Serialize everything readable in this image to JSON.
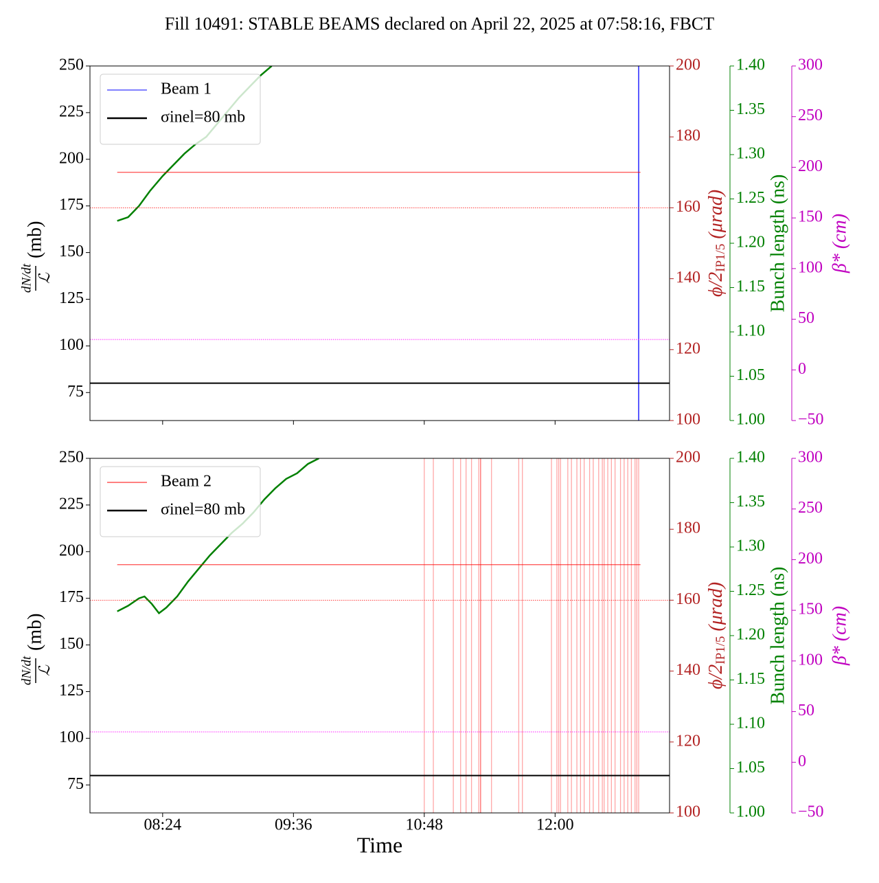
{
  "title": "Fill 10491: STABLE BEAMS declared on April 22, 2025 at 07:58:16, FBCT",
  "chart_data": [
    {
      "type": "line",
      "xtick_labels": false,
      "legend": "upper left",
      "ylabel": {
        "numerator": "dN/dt",
        "denominator": "ℒ",
        "unit": "(mb)"
      },
      "ylim": [
        60,
        250
      ],
      "yticks": [
        75,
        100,
        125,
        150,
        175,
        200,
        225,
        250
      ],
      "y2label": {
        "main": "ϕ/2",
        "sub": "IP1/5",
        "unit": " (μrad)"
      },
      "y2color": "#b22222",
      "y2lim": [
        100,
        200
      ],
      "y2ticks": [
        100,
        120,
        140,
        160,
        180,
        200
      ],
      "y3label": "Bunch length (ns)",
      "y3color": "#008000",
      "y3lim": [
        1,
        1.4
      ],
      "y3ticks": [
        {
          "value": 1,
          "label": "1.00"
        },
        {
          "value": 1.05,
          "label": "1.05"
        },
        {
          "value": 1.1,
          "label": "1.10"
        },
        {
          "value": 1.15,
          "label": "1.15"
        },
        {
          "value": 1.2,
          "label": "1.20"
        },
        {
          "value": 1.25,
          "label": "1.25"
        },
        {
          "value": 1.3,
          "label": "1.30"
        },
        {
          "value": 1.35,
          "label": "1.35"
        },
        {
          "value": 1.4,
          "label": "1.40"
        }
      ],
      "y4label": "β* (cm)",
      "y4color": "#c000c0",
      "y4lim": [
        -50,
        300
      ],
      "y4ticks": [
        {
          "value": -50,
          "label": "−50"
        },
        0,
        50,
        100,
        150,
        200,
        250,
        300
      ],
      "xlim": [
        "07:44",
        "13:03"
      ],
      "xticks": [
        "08:24",
        "09:36",
        "10:48",
        "12:00"
      ],
      "series": [
        {
          "color": "#008000",
          "x": [
            "07:59",
            "08:05",
            "08:11",
            "08:17",
            "08:24",
            "08:30",
            "08:36",
            "08:42",
            "08:48",
            "08:54",
            "09:00",
            "09:06",
            "09:12",
            "09:18",
            "09:24"
          ],
          "values": [
            167,
            169,
            175,
            183,
            191,
            197,
            203,
            208,
            212,
            219,
            226,
            233,
            239,
            245,
            250
          ]
        },
        {
          "name": "Beam 1",
          "kind": "vline",
          "color": "#0000ff",
          "alpha": 1,
          "x": [
            "12:46"
          ]
        },
        {
          "name": "σinel=80 mb",
          "kind": "hline",
          "color": "#000000",
          "values": [
            80
          ]
        },
        {
          "color": "#ff0000",
          "axis": "y2",
          "x": [
            "07:59",
            "12:47"
          ],
          "values": [
            170,
            170
          ]
        },
        {
          "kind": "hline",
          "dash": "dotted",
          "color": "#ff0000",
          "axis": "y2",
          "values": [
            160
          ]
        },
        {
          "kind": "hline",
          "dash": "dotted",
          "color": "#ff00ff",
          "axis": "y4",
          "values": [
            30
          ]
        }
      ]
    },
    {
      "type": "line",
      "xlabel": "Time",
      "legend": "upper left",
      "ylabel": {
        "numerator": "dN/dt",
        "denominator": "ℒ",
        "unit": "(mb)"
      },
      "ylim": [
        60,
        250
      ],
      "yticks": [
        75,
        100,
        125,
        150,
        175,
        200,
        225,
        250
      ],
      "y2label": {
        "main": "ϕ/2",
        "sub": "IP1/5",
        "unit": " (μrad)"
      },
      "y2color": "#b22222",
      "y2lim": [
        100,
        200
      ],
      "y2ticks": [
        100,
        120,
        140,
        160,
        180,
        200
      ],
      "y3label": "Bunch length (ns)",
      "y3color": "#008000",
      "y3lim": [
        1,
        1.4
      ],
      "y3ticks": [
        {
          "value": 1,
          "label": "1.00"
        },
        {
          "value": 1.05,
          "label": "1.05"
        },
        {
          "value": 1.1,
          "label": "1.10"
        },
        {
          "value": 1.15,
          "label": "1.15"
        },
        {
          "value": 1.2,
          "label": "1.20"
        },
        {
          "value": 1.25,
          "label": "1.25"
        },
        {
          "value": 1.3,
          "label": "1.30"
        },
        {
          "value": 1.35,
          "label": "1.35"
        },
        {
          "value": 1.4,
          "label": "1.40"
        }
      ],
      "y4label": "β* (cm)",
      "y4color": "#c000c0",
      "y4lim": [
        -50,
        300
      ],
      "y4ticks": [
        {
          "value": -50,
          "label": "−50"
        },
        0,
        50,
        100,
        150,
        200,
        250,
        300
      ],
      "xlim": [
        "07:44",
        "13:03"
      ],
      "xticks": [
        "08:24",
        "09:36",
        "10:48",
        "12:00"
      ],
      "series": [
        {
          "color": "#008000",
          "x": [
            "07:59",
            "08:05",
            "08:11",
            "08:14",
            "08:18",
            "08:22",
            "08:26",
            "08:32",
            "08:38",
            "08:44",
            "08:50",
            "08:56",
            "09:02",
            "09:08",
            "09:14",
            "09:20",
            "09:26",
            "09:32",
            "09:38",
            "09:44",
            "09:50"
          ],
          "values": [
            168,
            171,
            175,
            176,
            172,
            167,
            170,
            176,
            184,
            191,
            198,
            204,
            210,
            215,
            221,
            228,
            234,
            239,
            242,
            247,
            250
          ]
        },
        {
          "name": "Beam 2",
          "kind": "vline",
          "color": "#ff0000",
          "alpha": 0.35,
          "x": [
            "10:48",
            "10:53",
            "11:04",
            "11:08",
            "11:11",
            "11:14",
            "11:18",
            "11:19",
            "11:19",
            "11:25",
            "11:40",
            "11:42",
            "11:58",
            "12:01",
            "12:02",
            "12:03",
            "12:07",
            "12:09",
            "12:12",
            "12:14",
            "12:16",
            "12:19",
            "12:21",
            "12:24",
            "12:26",
            "12:27",
            "12:29",
            "12:31",
            "12:33",
            "12:36",
            "12:38",
            "12:40",
            "12:42",
            "12:44",
            "12:45",
            "12:46"
          ]
        },
        {
          "name": "σinel=80 mb",
          "kind": "hline",
          "color": "#000000",
          "values": [
            80
          ]
        },
        {
          "color": "#ff0000",
          "axis": "y2",
          "x": [
            "07:59",
            "12:47"
          ],
          "values": [
            170,
            170
          ]
        },
        {
          "kind": "hline",
          "dash": "dotted",
          "color": "#ff0000",
          "axis": "y2",
          "values": [
            160
          ]
        },
        {
          "kind": "hline",
          "dash": "dotted",
          "color": "#ff00ff",
          "axis": "y4",
          "values": [
            30
          ]
        }
      ]
    }
  ]
}
